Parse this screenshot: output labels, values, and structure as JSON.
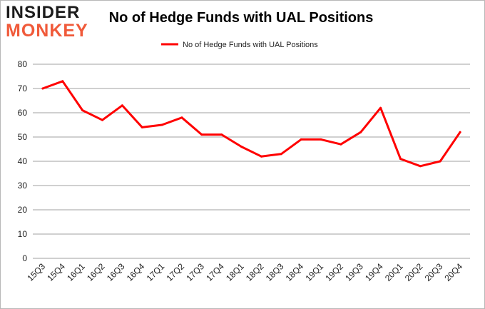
{
  "logo": {
    "line1": "INSIDER",
    "line2": "MONKEY"
  },
  "chart_data": {
    "type": "line",
    "title": "No of Hedge Funds with UAL Positions",
    "categories": [
      "15Q3",
      "15Q4",
      "16Q1",
      "16Q2",
      "16Q3",
      "16Q4",
      "17Q1",
      "17Q2",
      "17Q3",
      "17Q4",
      "18Q1",
      "18Q2",
      "18Q3",
      "18Q4",
      "19Q1",
      "19Q2",
      "19Q3",
      "19Q4",
      "20Q1",
      "20Q2",
      "20Q3",
      "20Q4"
    ],
    "series": [
      {
        "name": "No of Hedge Funds with UAL Positions",
        "values": [
          70,
          73,
          61,
          57,
          63,
          54,
          55,
          58,
          51,
          51,
          46,
          42,
          43,
          49,
          49,
          47,
          52,
          62,
          41,
          38,
          40,
          52
        ],
        "color": "#ff0000"
      }
    ],
    "ylim": [
      0,
      80
    ],
    "yticks": [
      "0",
      "10",
      "20",
      "30",
      "40",
      "50",
      "60",
      "70",
      "80"
    ],
    "grid": true,
    "legend_position": "top"
  }
}
